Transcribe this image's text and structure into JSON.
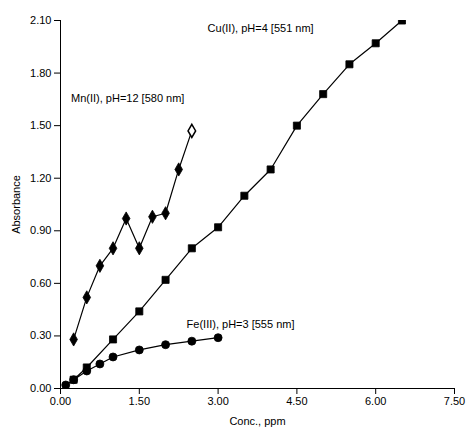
{
  "chart_data": {
    "type": "line",
    "x_label": "Conc., ppm",
    "y_label": "Absorbance",
    "xlim": [
      0.0,
      7.5
    ],
    "ylim": [
      0.0,
      2.1
    ],
    "xticks": [
      {
        "value": 0.0,
        "label": "0.00"
      },
      {
        "value": 1.5,
        "label": "1.50"
      },
      {
        "value": 3.0,
        "label": "3.00"
      },
      {
        "value": 4.5,
        "label": "4.50"
      },
      {
        "value": 6.0,
        "label": "6.00"
      },
      {
        "value": 7.5,
        "label": "7.50"
      }
    ],
    "yticks": [
      {
        "value": 0.0,
        "label": "0.00"
      },
      {
        "value": 0.3,
        "label": "0.30"
      },
      {
        "value": 0.6,
        "label": "0.60"
      },
      {
        "value": 0.9,
        "label": "0.90"
      },
      {
        "value": 1.2,
        "label": "1.20"
      },
      {
        "value": 1.5,
        "label": "1.50"
      },
      {
        "value": 1.8,
        "label": "1.80"
      },
      {
        "value": 2.1,
        "label": "2.10"
      }
    ],
    "grid": false,
    "series": [
      {
        "type": "line",
        "marker": "square",
        "color": "#000000",
        "x": [
          0.25,
          0.5,
          1.0,
          1.5,
          2.0,
          2.5,
          3.0,
          3.5,
          4.0,
          4.5,
          5.0,
          5.5,
          6.0,
          6.5
        ],
        "values": [
          0.05,
          0.12,
          0.28,
          0.44,
          0.62,
          0.8,
          0.92,
          1.1,
          1.25,
          1.5,
          1.68,
          1.85,
          1.97,
          2.1
        ]
      },
      {
        "type": "line",
        "marker": "none",
        "color": "#000000",
        "x": [
          0.25,
          0.5,
          0.75,
          1.0,
          1.25,
          1.5,
          1.75,
          2.0,
          2.25,
          2.5
        ],
        "values": [
          0.28,
          0.52,
          0.7,
          0.8,
          0.97,
          0.8,
          0.98,
          1.0,
          1.25,
          1.47
        ]
      },
      {
        "type": "scatter",
        "marker": "diamond",
        "color": "#000000",
        "x": [
          0.25,
          0.5,
          0.75,
          1.0,
          1.25,
          1.5,
          1.75,
          2.0,
          2.25
        ],
        "values": [
          0.28,
          0.52,
          0.7,
          0.8,
          0.97,
          0.8,
          0.98,
          1.0,
          1.25
        ]
      },
      {
        "type": "scatter",
        "marker": "open diamond",
        "color": "#000000",
        "x": [
          2.5
        ],
        "values": [
          1.47
        ]
      },
      {
        "type": "line",
        "marker": "circle",
        "color": "#000000",
        "x": [
          0.1,
          0.25,
          0.5,
          0.75,
          1.0,
          1.5,
          2.0,
          2.5,
          3.0
        ],
        "values": [
          0.02,
          0.05,
          0.1,
          0.14,
          0.18,
          0.22,
          0.25,
          0.27,
          0.29
        ]
      }
    ],
    "annotations": [
      {
        "text": "Cu(II), pH=4 [551 nm]",
        "x": 2.8,
        "y": 2.08
      },
      {
        "text": "Mn(II), pH=12 [580 nm]",
        "x": 0.2,
        "y": 1.68
      },
      {
        "text": "Fe(III), pH=3 [555 nm]",
        "x": 2.4,
        "y": 0.39
      }
    ]
  }
}
